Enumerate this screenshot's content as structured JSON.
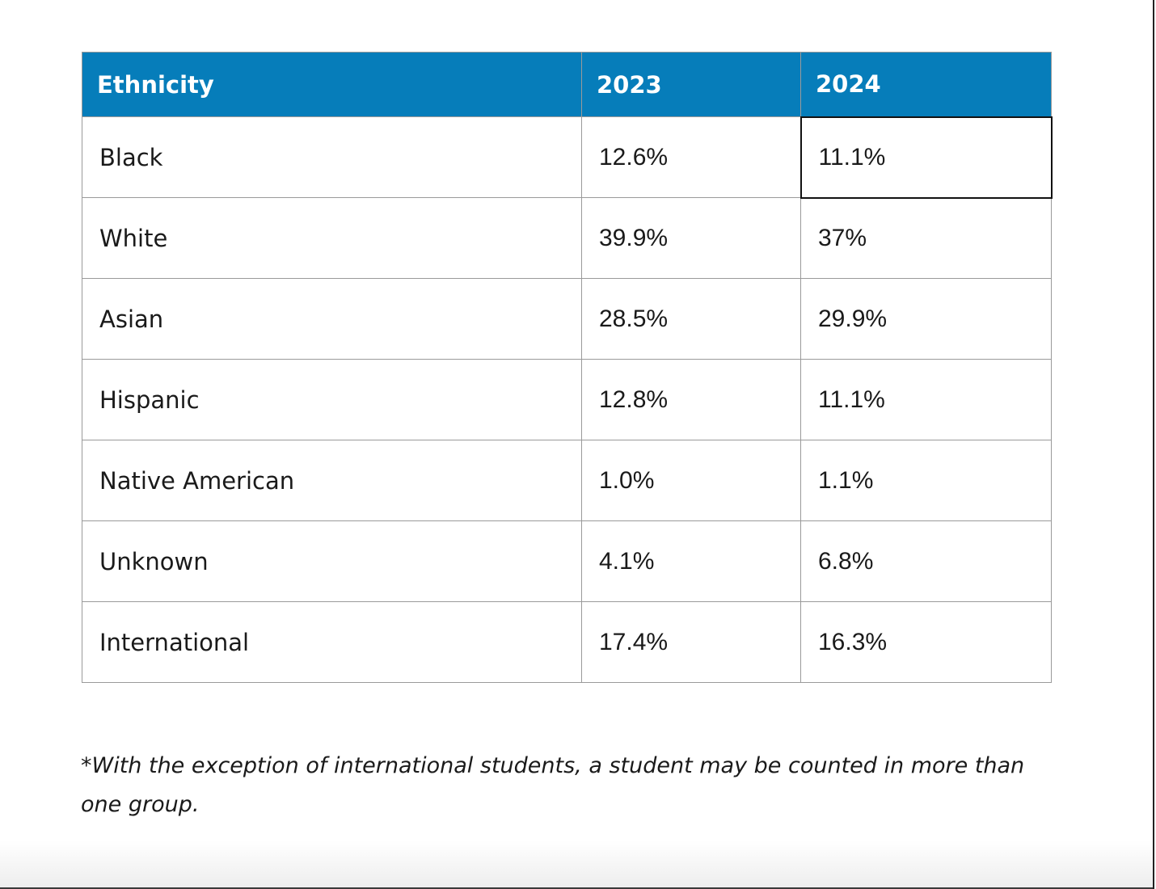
{
  "table": {
    "headers": [
      "Ethnicity",
      "2023",
      "2024"
    ],
    "rows": [
      {
        "ethnicity": "Black",
        "y2023": "12.6%",
        "y2024": "11.1%"
      },
      {
        "ethnicity": "White",
        "y2023": "39.9%",
        "y2024": "37%"
      },
      {
        "ethnicity": "Asian",
        "y2023": "28.5%",
        "y2024": "29.9%"
      },
      {
        "ethnicity": "Hispanic",
        "y2023": "12.8%",
        "y2024": "11.1%"
      },
      {
        "ethnicity": "Native American",
        "y2023": "1.0%",
        "y2024": "1.1%"
      },
      {
        "ethnicity": "Unknown",
        "y2023": "4.1%",
        "y2024": "6.8%"
      },
      {
        "ethnicity": "International",
        "y2023": "17.4%",
        "y2024": "16.3%"
      }
    ]
  },
  "footnote": "*With the exception of international students, a student may be counted in more than one group.",
  "colors": {
    "header_background": "#067dba",
    "header_text": "#ffffff",
    "cell_border": "#9a9a9a"
  }
}
